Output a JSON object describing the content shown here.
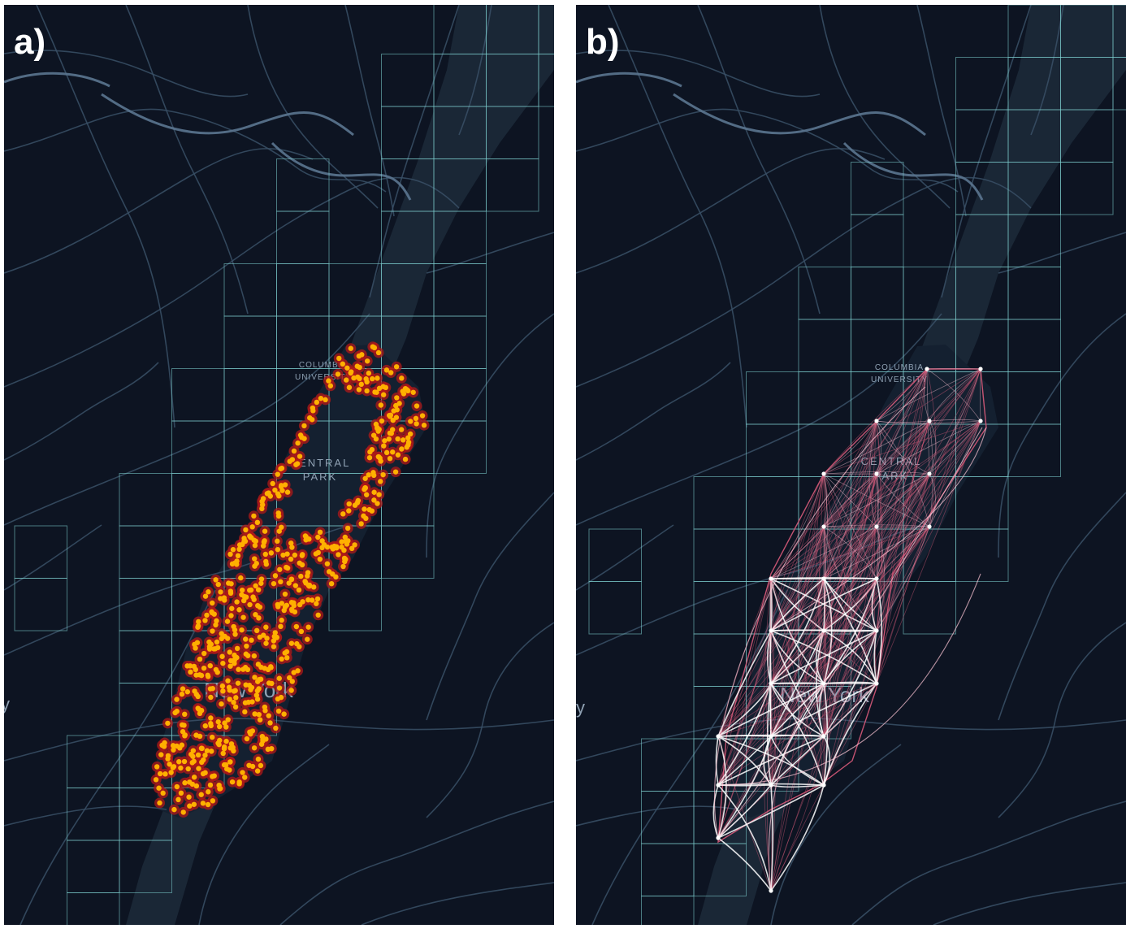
{
  "panels": [
    {
      "id": "a",
      "label": "a)",
      "overlay": "points",
      "point_colors": {
        "glow": "#b01818",
        "core": "#ffb000"
      }
    },
    {
      "id": "b",
      "label": "b)",
      "overlay": "flows",
      "flow_colors": {
        "strong": "#ffffff",
        "medium": "#ffc6d6",
        "weak": "#d85a7a"
      }
    }
  ],
  "map_labels": {
    "university_line1": "COLUMBIA",
    "university_line2": "UNIVERSITY",
    "park_line1": "CENTRAL",
    "park_line2": "PARK",
    "city": "New York",
    "edge_letter": "y"
  },
  "colors": {
    "background": "#0d1422",
    "river": "#1a2736",
    "roads": "#3a5066",
    "roads_bright": "#5b7590",
    "grid": "#7ecfcf",
    "label": "#8fa1b3"
  }
}
